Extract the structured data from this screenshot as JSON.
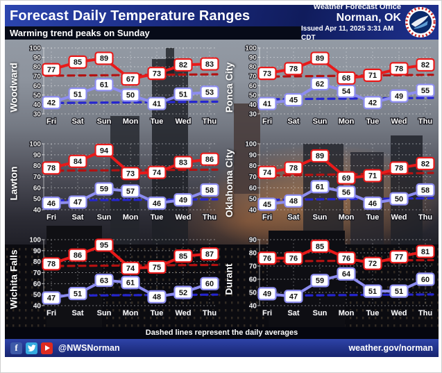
{
  "header": {
    "title": "Forecast Daily Temperature Ranges",
    "subtitle": "Warming trend peaks on Sunday",
    "office_line1": "Weather Forecast Office",
    "office_line2": "Norman, OK",
    "issued": "Issued Apr 11, 2025 3:31 AM CDT"
  },
  "footer": {
    "note": "Dashed lines represent the daily averages",
    "social_handle": "@NWSNorman",
    "website": "weather.gov/norman"
  },
  "colors": {
    "high_line": "#e81a1a",
    "low_line": "#8d8df0",
    "high_avg": "#b31212",
    "low_avg": "#2525cf"
  },
  "chart_data": [
    {
      "type": "line",
      "title": "Woodward",
      "categories": [
        "Fri",
        "Sat",
        "Sun",
        "Mon",
        "Tue",
        "Wed",
        "Thu"
      ],
      "ylim": [
        30,
        100
      ],
      "ytick_step": 10,
      "grid": true,
      "series": [
        {
          "name": "High",
          "color": "#e81a1a",
          "values": [
            77,
            85,
            89,
            67,
            73,
            82,
            83
          ]
        },
        {
          "name": "Low",
          "color": "#8d8df0",
          "values": [
            42,
            51,
            61,
            50,
            41,
            51,
            53
          ]
        },
        {
          "name": "High daily average",
          "color": "#b31212",
          "style": "dashed",
          "trend": [
            70.5,
            72
          ]
        },
        {
          "name": "Low daily average",
          "color": "#2525cf",
          "style": "dashed",
          "trend": [
            41.5,
            43
          ]
        }
      ]
    },
    {
      "type": "line",
      "title": "Ponca City",
      "categories": [
        "Fri",
        "Sat",
        "Sun",
        "Mon",
        "Tue",
        "Wed",
        "Thu"
      ],
      "ylim": [
        30,
        100
      ],
      "ytick_step": 10,
      "grid": true,
      "series": [
        {
          "name": "High",
          "color": "#e81a1a",
          "values": [
            73,
            78,
            89,
            68,
            71,
            78,
            82
          ]
        },
        {
          "name": "Low",
          "color": "#8d8df0",
          "values": [
            41,
            45,
            62,
            54,
            42,
            49,
            55
          ]
        },
        {
          "name": "High daily average",
          "color": "#b31212",
          "style": "dashed",
          "trend": [
            69.5,
            71.5
          ]
        },
        {
          "name": "Low daily average",
          "color": "#2525cf",
          "style": "dashed",
          "trend": [
            45.5,
            47
          ]
        }
      ]
    },
    {
      "type": "line",
      "title": "Lawton",
      "categories": [
        "Fri",
        "Sat",
        "Sun",
        "Mon",
        "Tue",
        "Wed",
        "Thu"
      ],
      "ylim": [
        40,
        100
      ],
      "ytick_step": 10,
      "grid": true,
      "series": [
        {
          "name": "High",
          "color": "#e81a1a",
          "values": [
            78,
            84,
            94,
            73,
            74,
            83,
            86
          ]
        },
        {
          "name": "Low",
          "color": "#8d8df0",
          "values": [
            46,
            47,
            59,
            57,
            46,
            49,
            58
          ]
        },
        {
          "name": "High daily average",
          "color": "#b31212",
          "style": "dashed",
          "trend": [
            75.5,
            76.5
          ]
        },
        {
          "name": "Low daily average",
          "color": "#2525cf",
          "style": "dashed",
          "trend": [
            48.5,
            49.5
          ]
        }
      ]
    },
    {
      "type": "line",
      "title": "Oklahoma City",
      "categories": [
        "Fri",
        "Sat",
        "Sun",
        "Mon",
        "Tue",
        "Wed",
        "Thu"
      ],
      "ylim": [
        40,
        100
      ],
      "ytick_step": 10,
      "grid": true,
      "series": [
        {
          "name": "High",
          "color": "#e81a1a",
          "values": [
            74,
            78,
            89,
            69,
            71,
            78,
            82
          ]
        },
        {
          "name": "Low",
          "color": "#8d8df0",
          "values": [
            45,
            48,
            61,
            56,
            46,
            50,
            58
          ]
        },
        {
          "name": "High daily average",
          "color": "#b31212",
          "style": "dashed",
          "trend": [
            71,
            73.5
          ]
        },
        {
          "name": "Low daily average",
          "color": "#2525cf",
          "style": "dashed",
          "trend": [
            49,
            50.5
          ]
        }
      ]
    },
    {
      "type": "line",
      "title": "Wichita Falls",
      "categories": [
        "Fri",
        "Sat",
        "Sun",
        "Mon",
        "Tue",
        "Wed",
        "Thu"
      ],
      "ylim": [
        40,
        100
      ],
      "ytick_step": 10,
      "grid": true,
      "series": [
        {
          "name": "High",
          "color": "#e81a1a",
          "values": [
            78,
            86,
            95,
            74,
            75,
            85,
            87
          ]
        },
        {
          "name": "Low",
          "color": "#8d8df0",
          "values": [
            47,
            51,
            63,
            61,
            48,
            52,
            60
          ]
        },
        {
          "name": "High daily average",
          "color": "#b31212",
          "style": "dashed",
          "trend": [
            76,
            77
          ]
        },
        {
          "name": "Low daily average",
          "color": "#2525cf",
          "style": "dashed",
          "trend": [
            49,
            50
          ]
        }
      ]
    },
    {
      "type": "line",
      "title": "Durant",
      "categories": [
        "Fri",
        "Sat",
        "Sun",
        "Mon",
        "Tue",
        "Wed",
        "Thu"
      ],
      "ylim": [
        40,
        90
      ],
      "ytick_step": 10,
      "grid": true,
      "series": [
        {
          "name": "High",
          "color": "#e81a1a",
          "values": [
            76,
            76,
            85,
            76,
            72,
            77,
            81
          ]
        },
        {
          "name": "Low",
          "color": "#8d8df0",
          "values": [
            49,
            47,
            59,
            64,
            51,
            51,
            60
          ]
        },
        {
          "name": "High daily average",
          "color": "#b31212",
          "style": "dashed",
          "trend": [
            73.5,
            74.5
          ]
        },
        {
          "name": "Low daily average",
          "color": "#2525cf",
          "style": "dashed",
          "trend": [
            47.5,
            48.5
          ]
        }
      ]
    }
  ]
}
